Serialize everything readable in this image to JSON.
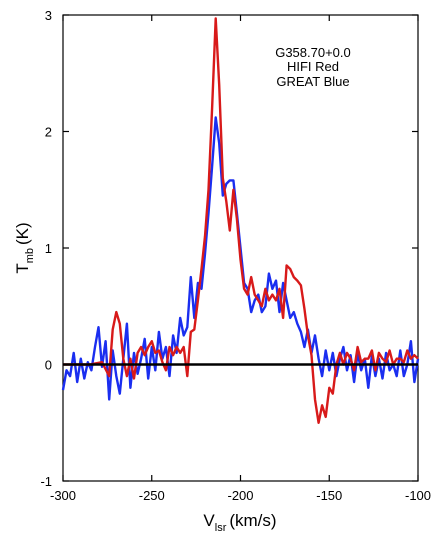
{
  "chart_data": {
    "type": "line",
    "annotation_lines": [
      "G358.70+0.0",
      "HIFI Red",
      "GREAT Blue"
    ],
    "xlabel": {
      "main": "V",
      "sub": "lsr",
      "unit": "(km/s)"
    },
    "ylabel": {
      "main": "T",
      "sub": "mb",
      "unit": "(K)"
    },
    "xlim": [
      -300,
      -100
    ],
    "ylim": [
      -1,
      3
    ],
    "x_ticks": [
      {
        "value": -300,
        "label": "-300"
      },
      {
        "value": -250,
        "label": "-250"
      },
      {
        "value": -200,
        "label": "-200"
      },
      {
        "value": -150,
        "label": "-150"
      },
      {
        "value": -100,
        "label": "-100"
      }
    ],
    "y_ticks": [
      {
        "value": -1,
        "label": "-1"
      },
      {
        "value": 0,
        "label": "0"
      },
      {
        "value": 1,
        "label": "1"
      },
      {
        "value": 2,
        "label": "2"
      },
      {
        "value": 3,
        "label": "3"
      }
    ],
    "grid": false,
    "baseline": {
      "y": 0,
      "color": "#000000"
    },
    "series": [
      {
        "color": "#1a2ef0",
        "points": [
          [
            -300,
            -0.22
          ],
          [
            -298,
            -0.05
          ],
          [
            -296,
            -0.1
          ],
          [
            -294,
            0.1
          ],
          [
            -292,
            -0.15
          ],
          [
            -290,
            0.05
          ],
          [
            -288,
            -0.12
          ],
          [
            -286,
            0.02
          ],
          [
            -284,
            -0.05
          ],
          [
            -282,
            0.15
          ],
          [
            -280,
            0.32
          ],
          [
            -278,
            -0.02
          ],
          [
            -276,
            0.2
          ],
          [
            -274,
            -0.3
          ],
          [
            -272,
            0.12
          ],
          [
            -270,
            -0.1
          ],
          [
            -268,
            -0.25
          ],
          [
            -266,
            0.05
          ],
          [
            -264,
            0.35
          ],
          [
            -262,
            -0.2
          ],
          [
            -260,
            0.1
          ],
          [
            -258,
            -0.08
          ],
          [
            -256,
            0.05
          ],
          [
            -254,
            0.22
          ],
          [
            -252,
            -0.12
          ],
          [
            -250,
            0.15
          ],
          [
            -248,
            -0.05
          ],
          [
            -246,
            0.28
          ],
          [
            -244,
            0.05
          ],
          [
            -242,
            0.15
          ],
          [
            -240,
            -0.1
          ],
          [
            -238,
            0.25
          ],
          [
            -236,
            0.1
          ],
          [
            -234,
            0.4
          ],
          [
            -232,
            0.25
          ],
          [
            -230,
            0.32
          ],
          [
            -228,
            0.75
          ],
          [
            -226,
            0.4
          ],
          [
            -224,
            0.7
          ],
          [
            -222,
            0.65
          ],
          [
            -220,
            0.95
          ],
          [
            -218,
            1.3
          ],
          [
            -216,
            1.7
          ],
          [
            -214,
            2.12
          ],
          [
            -212,
            1.9
          ],
          [
            -210,
            1.45
          ],
          [
            -208,
            1.55
          ],
          [
            -206,
            1.58
          ],
          [
            -204,
            1.58
          ],
          [
            -202,
            1.3
          ],
          [
            -200,
            1.0
          ],
          [
            -198,
            0.7
          ],
          [
            -196,
            0.65
          ],
          [
            -194,
            0.45
          ],
          [
            -192,
            0.55
          ],
          [
            -190,
            0.6
          ],
          [
            -188,
            0.45
          ],
          [
            -186,
            0.5
          ],
          [
            -184,
            0.78
          ],
          [
            -182,
            0.65
          ],
          [
            -180,
            0.72
          ],
          [
            -178,
            0.45
          ],
          [
            -176,
            0.7
          ],
          [
            -174,
            0.55
          ],
          [
            -172,
            0.4
          ],
          [
            -170,
            0.45
          ],
          [
            -168,
            0.35
          ],
          [
            -166,
            0.28
          ],
          [
            -164,
            0.15
          ],
          [
            -162,
            0.3
          ],
          [
            -160,
            0.1
          ],
          [
            -158,
            0.25
          ],
          [
            -156,
            0.05
          ],
          [
            -154,
            -0.1
          ],
          [
            -152,
            0.12
          ],
          [
            -150,
            -0.05
          ],
          [
            -148,
            0.1
          ],
          [
            -146,
            -0.1
          ],
          [
            -144,
            0.05
          ],
          [
            -142,
            0.15
          ],
          [
            -140,
            -0.05
          ],
          [
            -138,
            0.08
          ],
          [
            -136,
            -0.15
          ],
          [
            -134,
            0.1
          ],
          [
            -132,
            -0.05
          ],
          [
            -130,
            0.05
          ],
          [
            -128,
            -0.2
          ],
          [
            -126,
            0.08
          ],
          [
            -124,
            -0.1
          ],
          [
            -122,
            0.05
          ],
          [
            -120,
            -0.12
          ],
          [
            -118,
            0.1
          ],
          [
            -116,
            -0.05
          ],
          [
            -114,
            0.0
          ],
          [
            -112,
            -0.1
          ],
          [
            -110,
            0.12
          ],
          [
            -108,
            -0.1
          ],
          [
            -106,
            0.0
          ],
          [
            -104,
            0.2
          ],
          [
            -102,
            -0.15
          ],
          [
            -100,
            0.05
          ]
        ]
      },
      {
        "color": "#d81a1a",
        "points": [
          [
            -300,
            0.0
          ],
          [
            -285,
            0.0
          ],
          [
            -278,
            0.02
          ],
          [
            -274,
            -0.1
          ],
          [
            -272,
            0.3
          ],
          [
            -270,
            0.45
          ],
          [
            -268,
            0.35
          ],
          [
            -266,
            0.05
          ],
          [
            -264,
            -0.1
          ],
          [
            -262,
            0.05
          ],
          [
            -260,
            -0.12
          ],
          [
            -258,
            0.1
          ],
          [
            -256,
            0.15
          ],
          [
            -254,
            0.08
          ],
          [
            -252,
            0.15
          ],
          [
            -250,
            0.2
          ],
          [
            -248,
            0.1
          ],
          [
            -246,
            0.12
          ],
          [
            -244,
            0.02
          ],
          [
            -242,
            -0.05
          ],
          [
            -240,
            0.15
          ],
          [
            -238,
            0.08
          ],
          [
            -236,
            0.15
          ],
          [
            -234,
            0.1
          ],
          [
            -232,
            0.15
          ],
          [
            -230,
            -0.1
          ],
          [
            -228,
            0.28
          ],
          [
            -226,
            0.3
          ],
          [
            -224,
            0.55
          ],
          [
            -222,
            0.82
          ],
          [
            -220,
            1.1
          ],
          [
            -218,
            1.5
          ],
          [
            -216,
            2.2
          ],
          [
            -214,
            2.97
          ],
          [
            -212,
            2.4
          ],
          [
            -210,
            1.6
          ],
          [
            -208,
            1.4
          ],
          [
            -206,
            1.15
          ],
          [
            -204,
            1.5
          ],
          [
            -202,
            1.25
          ],
          [
            -200,
            0.9
          ],
          [
            -198,
            0.65
          ],
          [
            -196,
            0.6
          ],
          [
            -194,
            0.75
          ],
          [
            -192,
            0.6
          ],
          [
            -190,
            0.55
          ],
          [
            -188,
            0.5
          ],
          [
            -186,
            0.65
          ],
          [
            -184,
            0.55
          ],
          [
            -182,
            0.6
          ],
          [
            -180,
            0.55
          ],
          [
            -178,
            0.65
          ],
          [
            -176,
            0.4
          ],
          [
            -174,
            0.85
          ],
          [
            -172,
            0.82
          ],
          [
            -170,
            0.75
          ],
          [
            -168,
            0.72
          ],
          [
            -166,
            0.68
          ],
          [
            -164,
            0.48
          ],
          [
            -162,
            0.25
          ],
          [
            -160,
            0.08
          ],
          [
            -158,
            -0.3
          ],
          [
            -156,
            -0.5
          ],
          [
            -154,
            -0.35
          ],
          [
            -152,
            -0.45
          ],
          [
            -150,
            -0.2
          ],
          [
            -148,
            -0.25
          ],
          [
            -146,
            0.0
          ],
          [
            -144,
            0.1
          ],
          [
            -142,
            0.0
          ],
          [
            -140,
            0.1
          ],
          [
            -138,
            0.05
          ],
          [
            -136,
            -0.05
          ],
          [
            -134,
            0.15
          ],
          [
            -132,
            0.02
          ],
          [
            -130,
            0.05
          ],
          [
            -128,
            0.05
          ],
          [
            -126,
            0.12
          ],
          [
            -124,
            -0.05
          ],
          [
            -122,
            0.1
          ],
          [
            -120,
            0.05
          ],
          [
            -118,
            0.02
          ],
          [
            -116,
            0.12
          ],
          [
            -114,
            0.0
          ],
          [
            -112,
            0.05
          ],
          [
            -110,
            0.05
          ],
          [
            -108,
            0.02
          ],
          [
            -106,
            0.12
          ],
          [
            -104,
            0.05
          ],
          [
            -102,
            0.08
          ],
          [
            -100,
            0.05
          ]
        ]
      }
    ]
  }
}
